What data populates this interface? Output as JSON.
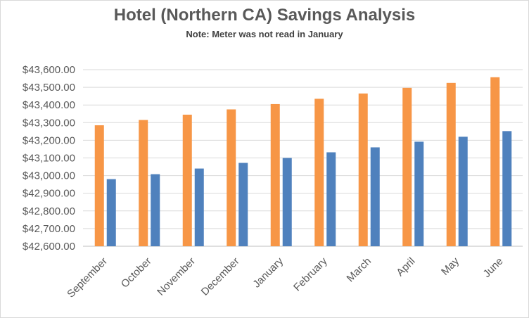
{
  "chart_data": {
    "type": "bar",
    "title": "Hotel (Northern CA) Savings Analysis",
    "subtitle": "Note: Meter was not read in January",
    "xlabel": "",
    "ylabel": "",
    "categories": [
      "September",
      "October",
      "November",
      "December",
      "January",
      "February",
      "March",
      "April",
      "May",
      "June"
    ],
    "y_ticks": [
      "$42,600.00",
      "$42,700.00",
      "$42,800.00",
      "$42,900.00",
      "$43,000.00",
      "$43,100.00",
      "$43,200.00",
      "$43,300.00",
      "$43,400.00",
      "$43,500.00",
      "$43,600.00"
    ],
    "ylim": [
      42600,
      43600
    ],
    "grid": true,
    "legend": "none",
    "series": [
      {
        "color": "#F79646",
        "values": [
          43285,
          43315,
          43345,
          43375,
          43405,
          43435,
          43465,
          43497,
          43525,
          43557
        ]
      },
      {
        "color": "#4F81BD",
        "values": [
          42980,
          43008,
          43040,
          43072,
          43100,
          43132,
          43160,
          43192,
          43220,
          43252
        ]
      }
    ]
  }
}
